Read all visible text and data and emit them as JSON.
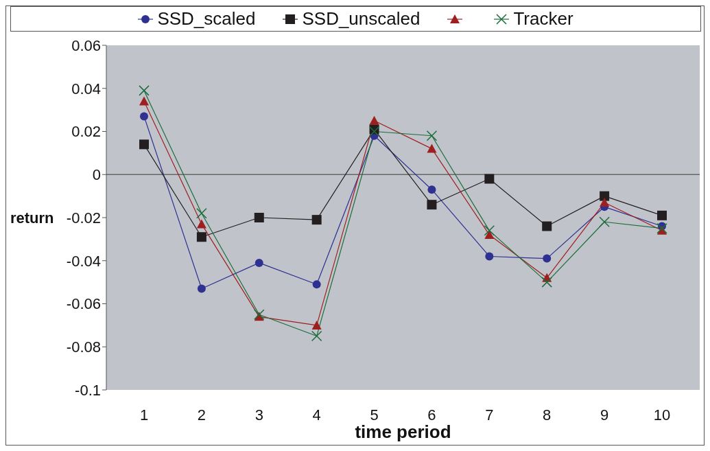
{
  "chart_data": {
    "type": "line",
    "xlabel": "time period",
    "ylabel": "return",
    "categories": [
      "1",
      "2",
      "3",
      "4",
      "5",
      "6",
      "7",
      "8",
      "9",
      "10"
    ],
    "series": [
      {
        "name": "SSD_scaled",
        "color": "#2e3192",
        "marker": "circle",
        "values": [
          0.027,
          -0.053,
          -0.041,
          -0.051,
          0.018,
          -0.007,
          -0.038,
          -0.039,
          -0.015,
          -0.024
        ]
      },
      {
        "name": "SSD_unscaled",
        "color": "#231f20",
        "marker": "square",
        "values": [
          0.014,
          -0.029,
          -0.02,
          -0.021,
          0.021,
          -0.014,
          -0.002,
          -0.024,
          -0.01,
          -0.019
        ]
      },
      {
        "color": "#9e1f1f",
        "marker": "triangle",
        "values": [
          0.034,
          -0.023,
          -0.066,
          -0.07,
          0.025,
          0.012,
          -0.028,
          -0.048,
          -0.013,
          -0.026
        ]
      },
      {
        "name": "Tracker",
        "color": "#1a6e3a",
        "marker": "cross",
        "values": [
          0.039,
          -0.018,
          -0.065,
          -0.075,
          0.02,
          0.018,
          -0.026,
          -0.05,
          -0.022,
          -0.025
        ]
      }
    ],
    "ylim": [
      -0.1,
      0.06
    ],
    "yticks": [
      -0.1,
      -0.08,
      -0.06,
      -0.04,
      -0.02,
      0,
      0.02,
      0.04,
      0.06
    ],
    "legend": "top"
  }
}
